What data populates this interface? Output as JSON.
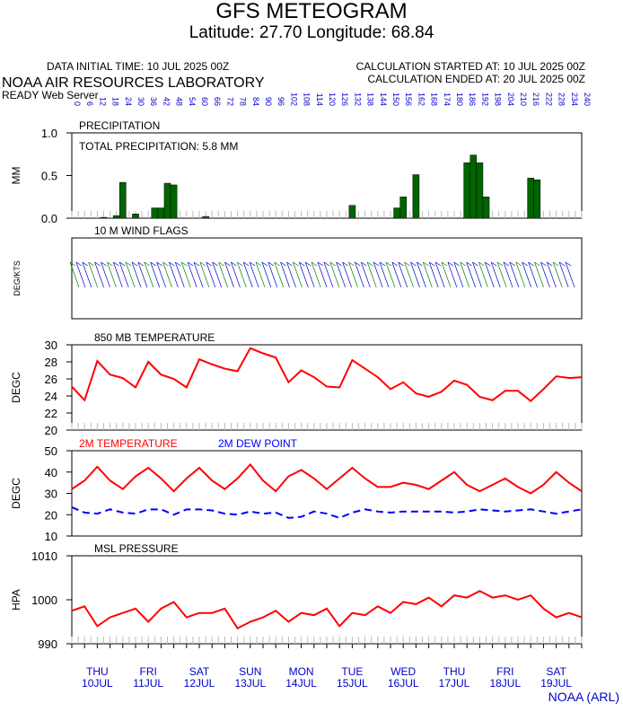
{
  "header": {
    "title": "GFS METEOGRAM",
    "subtitle": "Latitude: 27.70 Longitude:  68.84",
    "initial": "DATA INITIAL TIME: 10 JUL 2025 00Z",
    "calc_start": "CALCULATION STARTED AT: 10 JUL 2025 00Z",
    "calc_end": "CALCULATION ENDED AT: 20 JUL 2025 00Z",
    "lab": "NOAA AIR RESOURCES LABORATORY",
    "server": "READY Web Server"
  },
  "time_axis": {
    "xlim": [
      0,
      240
    ],
    "hours": [
      0,
      6,
      12,
      18,
      24,
      30,
      36,
      42,
      48,
      54,
      60,
      66,
      72,
      78,
      84,
      90,
      96,
      102,
      108,
      114,
      120,
      126,
      132,
      138,
      144,
      150,
      156,
      162,
      168,
      174,
      180,
      186,
      192,
      198,
      204,
      210,
      216,
      222,
      228,
      234,
      240
    ],
    "days": [
      {
        "day": "THU",
        "date": "10JUL",
        "hour": 12
      },
      {
        "day": "FRI",
        "date": "11JUL",
        "hour": 36
      },
      {
        "day": "SAT",
        "date": "12JUL",
        "hour": 60
      },
      {
        "day": "SUN",
        "date": "13JUL",
        "hour": 84
      },
      {
        "day": "MON",
        "date": "14JUL",
        "hour": 108
      },
      {
        "day": "TUE",
        "date": "15JUL",
        "hour": 132
      },
      {
        "day": "WED",
        "date": "16JUL",
        "hour": 156
      },
      {
        "day": "THU",
        "date": "17JUL",
        "hour": 180
      },
      {
        "day": "FRI",
        "date": "18JUL",
        "hour": 204
      },
      {
        "day": "SAT",
        "date": "19JUL",
        "hour": 228
      }
    ]
  },
  "chart_data": [
    {
      "type": "bar",
      "title": "PRECIPITATION",
      "ylabel": "MM",
      "annotation": "TOTAL PRECIPITATION:   5.8 MM",
      "color": "#006400",
      "x": [
        15,
        21,
        24,
        30,
        39,
        42,
        45,
        48,
        63,
        132,
        153,
        156,
        162,
        186,
        189,
        192,
        195,
        216,
        219
      ],
      "values": [
        0.01,
        0.03,
        0.42,
        0.05,
        0.12,
        0.12,
        0.41,
        0.39,
        0.02,
        0.15,
        0.12,
        0.25,
        0.51,
        0.65,
        0.74,
        0.65,
        0.25,
        0.47,
        0.45
      ],
      "ylim": [
        0,
        1
      ],
      "yticks": [
        {
          "value": 0,
          "label": "0.0"
        },
        {
          "value": 0.5,
          "label": "0.5"
        },
        {
          "value": 1,
          "label": "1.0"
        }
      ]
    },
    {
      "type": "wind",
      "title": "10 M  WIND FLAGS",
      "ylabel": "DEG/KTS"
    },
    {
      "type": "line",
      "title": "850 MB  TEMPERATURE",
      "ylabel": "DEGC",
      "ylim": [
        20,
        30
      ],
      "yticks": [
        20,
        22,
        24,
        26,
        28,
        30
      ],
      "series": [
        {
          "name": "850 MB",
          "color": "#ff0000",
          "dash": false,
          "values": [
            25.1,
            23.5,
            28.1,
            26.5,
            26.1,
            25.0,
            28.0,
            26.5,
            26.0,
            25.0,
            28.3,
            27.7,
            27.2,
            26.9,
            29.6,
            29.0,
            28.5,
            25.6,
            27.0,
            26.2,
            25.1,
            25.0,
            28.2,
            27.2,
            26.2,
            24.8,
            25.6,
            24.3,
            23.9,
            24.5,
            25.8,
            25.3,
            23.9,
            23.5,
            24.6,
            24.6,
            23.4,
            24.8,
            26.3,
            26.1,
            26.2
          ]
        }
      ]
    },
    {
      "type": "line",
      "ylabel": "DEGC",
      "ylim": [
        10,
        50
      ],
      "yticks": [
        10,
        20,
        30,
        40,
        50
      ],
      "series": [
        {
          "name": "2M TEMPERATURE",
          "color": "#ff0000",
          "dash": false,
          "values": [
            32,
            36,
            42.5,
            36,
            32,
            38,
            42,
            37,
            31,
            37,
            42,
            36,
            32,
            37,
            43.5,
            36,
            31,
            38,
            41,
            37,
            32,
            37,
            42,
            37,
            33,
            33,
            35,
            34,
            32,
            36,
            40,
            34,
            31,
            34,
            37,
            33,
            30,
            34,
            40,
            35,
            31
          ]
        },
        {
          "name": "2M  DEW POINT",
          "color": "#0000ff",
          "dash": true,
          "values": [
            23.5,
            21,
            20.5,
            22.5,
            21,
            20.5,
            22.5,
            22.5,
            20,
            22.5,
            22.5,
            22,
            20.5,
            20,
            21.5,
            20.5,
            21,
            18.5,
            19,
            21.5,
            20.5,
            18.5,
            21,
            22.5,
            21.5,
            21,
            21.5,
            21.5,
            21.5,
            21.5,
            21,
            21.5,
            22.5,
            22,
            21.5,
            22,
            22.5,
            21.5,
            20.5,
            21.5,
            22.5
          ]
        }
      ]
    },
    {
      "type": "line",
      "title": "MSL PRESSURE",
      "ylabel": "HPA",
      "ylim": [
        990,
        1010
      ],
      "yticks": [
        990,
        1000,
        1010
      ],
      "series": [
        {
          "name": "MSL",
          "color": "#ff0000",
          "dash": false,
          "values": [
            997.5,
            998.5,
            994,
            996,
            997,
            998,
            995,
            998,
            999.5,
            996,
            997,
            997,
            998,
            993.5,
            995,
            996,
            997.5,
            995,
            997,
            996.5,
            998,
            994,
            997,
            996.5,
            998.5,
            997,
            999.5,
            999,
            1000.5,
            998.5,
            1001,
            1000.5,
            1002,
            1000.5,
            1001,
            1000,
            1001,
            998,
            996,
            997,
            996
          ]
        }
      ]
    }
  ],
  "credit": "NOAA (ARL)"
}
